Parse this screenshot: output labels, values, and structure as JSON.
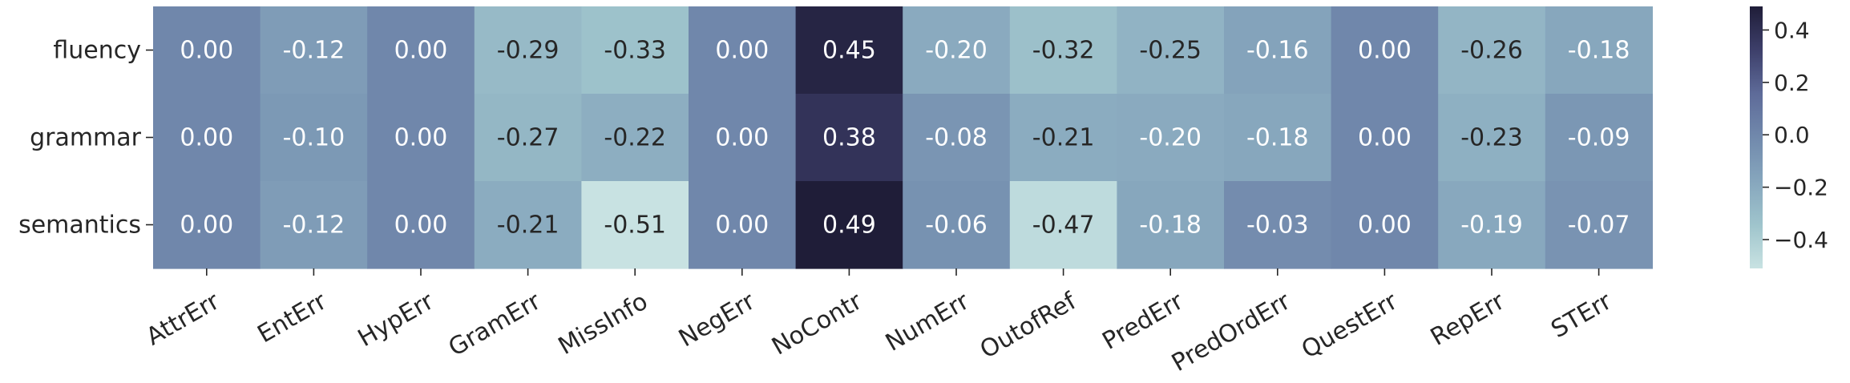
{
  "chart_data": {
    "type": "heatmap",
    "rows": [
      "fluency",
      "grammar",
      "semantics"
    ],
    "columns": [
      "AttrErr",
      "EntErr",
      "HypErr",
      "GramErr",
      "MissInfo",
      "NegErr",
      "NoContr",
      "NumErr",
      "OutofRef",
      "PredErr",
      "PredOrdErr",
      "QuestErr",
      "RepErr",
      "STErr"
    ],
    "values": [
      [
        0.0,
        -0.12,
        0.0,
        -0.29,
        -0.33,
        0.0,
        0.45,
        -0.2,
        -0.32,
        -0.25,
        -0.16,
        0.0,
        -0.26,
        -0.18
      ],
      [
        0.0,
        -0.1,
        0.0,
        -0.27,
        -0.22,
        0.0,
        0.38,
        -0.08,
        -0.21,
        -0.2,
        -0.18,
        0.0,
        -0.23,
        -0.09
      ],
      [
        0.0,
        -0.12,
        0.0,
        -0.21,
        -0.51,
        0.0,
        0.49,
        -0.06,
        -0.47,
        -0.18,
        -0.03,
        0.0,
        -0.19,
        -0.07
      ]
    ],
    "cell_labels": [
      [
        "0.00",
        "-0.12",
        "0.00",
        "-0.29",
        "-0.33",
        "0.00",
        "0.45",
        "-0.20",
        "-0.32",
        "-0.25",
        "-0.16",
        "0.00",
        "-0.26",
        "-0.18"
      ],
      [
        "0.00",
        "-0.10",
        "0.00",
        "-0.27",
        "-0.22",
        "0.00",
        "0.38",
        "-0.08",
        "-0.21",
        "-0.20",
        "-0.18",
        "0.00",
        "-0.23",
        "-0.09"
      ],
      [
        "0.00",
        "-0.12",
        "0.00",
        "-0.21",
        "-0.51",
        "0.00",
        "0.49",
        "-0.06",
        "-0.47",
        "-0.18",
        "-0.03",
        "0.00",
        "-0.19",
        "-0.07"
      ]
    ],
    "vmin": -0.51,
    "vmax": 0.49,
    "colorbar": {
      "ticks": [
        0.4,
        0.2,
        0.0,
        -0.2,
        -0.4
      ],
      "tick_labels": [
        "0.4",
        "0.2",
        "0.0",
        "−0.2",
        "−0.4"
      ],
      "placement": "right"
    },
    "colormap": [
      "#c8e2e2",
      "#9fc4cc",
      "#86a6bd",
      "#7189ac",
      "#5e6b99",
      "#3d3f6a",
      "#1f1d38"
    ],
    "dark_text_color": "#262626",
    "light_text_color": "#ffffff"
  }
}
